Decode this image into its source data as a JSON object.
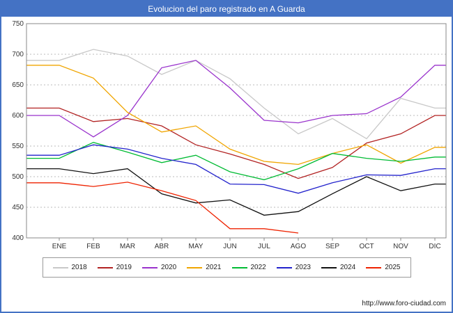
{
  "title": "Evolucion del paro registrado en A Guarda",
  "footer": {
    "url": "http://www.foro-ciudad.com"
  },
  "colors": {
    "titlebar": "#4472c4",
    "frame_border": "#4472c4",
    "grid": "#bbbbbb",
    "axis": "#888888",
    "tick_text": "#333333"
  },
  "chart_data": {
    "type": "line",
    "title": "Evolucion del paro registrado en A Guarda",
    "categories": [
      "ENE",
      "FEB",
      "MAR",
      "ABR",
      "MAY",
      "JUN",
      "JUL",
      "AGO",
      "SEP",
      "OCT",
      "NOV",
      "DIC"
    ],
    "ylim": [
      400,
      750
    ],
    "ytick_step": 50,
    "grid": true,
    "legend_position": "bottom",
    "series": [
      {
        "name": "2018",
        "color": "#c8c8c8",
        "values": [
          690,
          708,
          697,
          667,
          690,
          660,
          612,
          570,
          595,
          562,
          628,
          612
        ]
      },
      {
        "name": "2019",
        "color": "#b22222",
        "values": [
          612,
          590,
          595,
          583,
          552,
          537,
          520,
          497,
          515,
          555,
          570,
          600
        ]
      },
      {
        "name": "2020",
        "color": "#9932cc",
        "values": [
          600,
          565,
          600,
          678,
          690,
          645,
          592,
          588,
          600,
          603,
          630,
          682
        ]
      },
      {
        "name": "2021",
        "color": "#f0a500",
        "values": [
          682,
          661,
          605,
          573,
          583,
          545,
          525,
          520,
          538,
          552,
          522,
          548
        ]
      },
      {
        "name": "2022",
        "color": "#00bb33",
        "values": [
          530,
          556,
          540,
          523,
          535,
          508,
          495,
          513,
          538,
          530,
          525,
          532
        ]
      },
      {
        "name": "2023",
        "color": "#2222cc",
        "values": [
          535,
          552,
          545,
          530,
          520,
          488,
          487,
          473,
          490,
          503,
          502,
          513
        ]
      },
      {
        "name": "2024",
        "color": "#111111",
        "values": [
          513,
          505,
          513,
          472,
          457,
          462,
          437,
          443,
          472,
          500,
          477,
          488
        ]
      },
      {
        "name": "2025",
        "color": "#ee2200",
        "values": [
          490,
          484,
          491,
          477,
          461,
          415,
          415,
          408
        ]
      }
    ]
  }
}
